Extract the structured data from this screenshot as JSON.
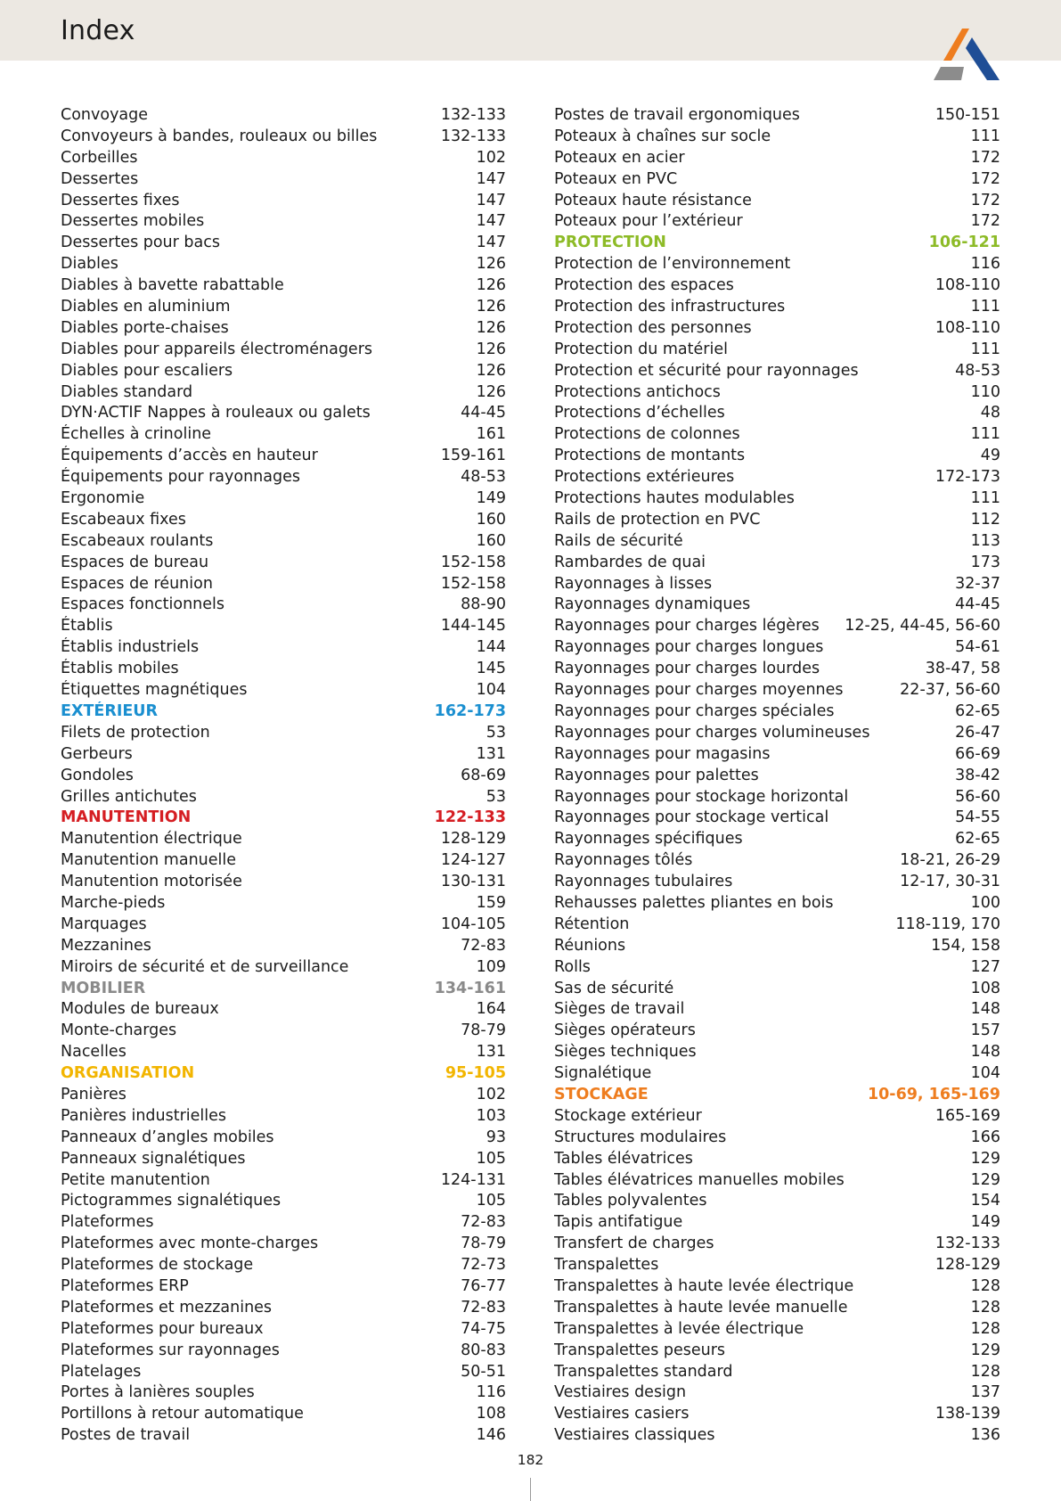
{
  "header": {
    "title": "Index"
  },
  "page_number": "182",
  "colors": {
    "exterieur": "#1a8fd0",
    "manutention": "#d51d22",
    "mobilier": "#8a8a8a",
    "organisation": "#f2b500",
    "protection": "#8dbb27",
    "stockage": "#ee7d1f"
  },
  "left_column": [
    {
      "term": "Convoyage",
      "pages": "132-133"
    },
    {
      "term": "Convoyeurs à bandes, rouleaux ou billes",
      "pages": "132-133"
    },
    {
      "term": "Corbeilles",
      "pages": "102"
    },
    {
      "term": "Dessertes",
      "pages": "147"
    },
    {
      "term": "Dessertes fixes",
      "pages": "147"
    },
    {
      "term": "Dessertes mobiles",
      "pages": "147"
    },
    {
      "term": "Dessertes pour bacs",
      "pages": "147"
    },
    {
      "term": "Diables",
      "pages": "126"
    },
    {
      "term": "Diables à bavette rabattable",
      "pages": "126"
    },
    {
      "term": "Diables en aluminium",
      "pages": "126"
    },
    {
      "term": "Diables porte-chaises",
      "pages": "126"
    },
    {
      "term": "Diables pour appareils électroménagers",
      "pages": "126"
    },
    {
      "term": "Diables pour escaliers",
      "pages": "126"
    },
    {
      "term": "Diables standard",
      "pages": "126"
    },
    {
      "term": "DYN·ACTIF Nappes à rouleaux ou galets",
      "pages": "44-45"
    },
    {
      "term": "Échelles à crinoline",
      "pages": "161"
    },
    {
      "term": "Équipements d’accès en hauteur",
      "pages": "159-161"
    },
    {
      "term": "Équipements pour rayonnages",
      "pages": "48-53"
    },
    {
      "term": "Ergonomie",
      "pages": "149"
    },
    {
      "term": "Escabeaux fixes",
      "pages": "160"
    },
    {
      "term": "Escabeaux roulants",
      "pages": "160"
    },
    {
      "term": "Espaces de bureau",
      "pages": "152-158"
    },
    {
      "term": "Espaces de réunion",
      "pages": "152-158"
    },
    {
      "term": "Espaces fonctionnels",
      "pages": "88-90"
    },
    {
      "term": "Établis",
      "pages": "144-145"
    },
    {
      "term": "Établis industriels",
      "pages": "144"
    },
    {
      "term": "Établis mobiles",
      "pages": "145"
    },
    {
      "term": "Étiquettes magnétiques",
      "pages": "104"
    },
    {
      "term": "EXTÉRIEUR",
      "pages": "162-173",
      "category": "exterieur"
    },
    {
      "term": "Filets de protection",
      "pages": "53"
    },
    {
      "term": "Gerbeurs",
      "pages": "131"
    },
    {
      "term": "Gondoles",
      "pages": "68-69"
    },
    {
      "term": "Grilles antichutes",
      "pages": "53"
    },
    {
      "term": "MANUTENTION",
      "pages": "122-133",
      "category": "manutention"
    },
    {
      "term": "Manutention électrique",
      "pages": "128-129"
    },
    {
      "term": "Manutention manuelle",
      "pages": "124-127"
    },
    {
      "term": "Manutention motorisée",
      "pages": "130-131"
    },
    {
      "term": "Marche-pieds",
      "pages": "159"
    },
    {
      "term": "Marquages",
      "pages": "104-105"
    },
    {
      "term": "Mezzanines",
      "pages": "72-83"
    },
    {
      "term": "Miroirs de sécurité et de surveillance",
      "pages": "109"
    },
    {
      "term": "MOBILIER",
      "pages": "134-161",
      "category": "mobilier"
    },
    {
      "term": "Modules de bureaux",
      "pages": "164"
    },
    {
      "term": "Monte-charges",
      "pages": "78-79"
    },
    {
      "term": "Nacelles",
      "pages": "131"
    },
    {
      "term": "ORGANISATION",
      "pages": "95-105",
      "category": "organisation"
    },
    {
      "term": "Panières",
      "pages": "102"
    },
    {
      "term": "Panières industrielles",
      "pages": "103"
    },
    {
      "term": "Panneaux d’angles mobiles",
      "pages": "93"
    },
    {
      "term": "Panneaux signalétiques",
      "pages": "105"
    },
    {
      "term": "Petite manutention",
      "pages": "124-131"
    },
    {
      "term": "Pictogrammes signalétiques",
      "pages": "105"
    },
    {
      "term": "Plateformes",
      "pages": "72-83"
    },
    {
      "term": "Plateformes avec monte-charges",
      "pages": "78-79"
    },
    {
      "term": "Plateformes de stockage",
      "pages": "72-73"
    },
    {
      "term": "Plateformes ERP",
      "pages": "76-77"
    },
    {
      "term": "Plateformes et mezzanines",
      "pages": "72-83"
    },
    {
      "term": "Plateformes pour bureaux",
      "pages": "74-75"
    },
    {
      "term": "Plateformes sur rayonnages",
      "pages": "80-83"
    },
    {
      "term": "Platelages",
      "pages": "50-51"
    },
    {
      "term": "Portes à lanières souples",
      "pages": "116"
    },
    {
      "term": "Portillons à retour automatique",
      "pages": "108"
    },
    {
      "term": "Postes de travail",
      "pages": "146"
    }
  ],
  "right_column": [
    {
      "term": "Postes de travail ergonomiques",
      "pages": "150-151"
    },
    {
      "term": "Poteaux à chaînes sur socle",
      "pages": "111"
    },
    {
      "term": "Poteaux en acier",
      "pages": "172"
    },
    {
      "term": "Poteaux en PVC",
      "pages": "172"
    },
    {
      "term": "Poteaux haute résistance",
      "pages": "172"
    },
    {
      "term": "Poteaux pour l’extérieur",
      "pages": "172"
    },
    {
      "term": "PROTECTION",
      "pages": "106-121",
      "category": "protection"
    },
    {
      "term": "Protection de l’environnement",
      "pages": "116"
    },
    {
      "term": "Protection des espaces",
      "pages": "108-110"
    },
    {
      "term": "Protection des infrastructures",
      "pages": "111"
    },
    {
      "term": "Protection des personnes",
      "pages": "108-110"
    },
    {
      "term": "Protection du matériel",
      "pages": "111"
    },
    {
      "term": "Protection et sécurité pour rayonnages",
      "pages": "48-53"
    },
    {
      "term": "Protections antichocs",
      "pages": "110"
    },
    {
      "term": "Protections d’échelles",
      "pages": "48"
    },
    {
      "term": "Protections de colonnes",
      "pages": "111"
    },
    {
      "term": "Protections de montants",
      "pages": "49"
    },
    {
      "term": "Protections extérieures",
      "pages": "172-173"
    },
    {
      "term": "Protections hautes modulables",
      "pages": "111"
    },
    {
      "term": "Rails de protection en PVC",
      "pages": "112"
    },
    {
      "term": "Rails de sécurité",
      "pages": "113"
    },
    {
      "term": "Rambardes de quai",
      "pages": "173"
    },
    {
      "term": "Rayonnages à lisses",
      "pages": "32-37"
    },
    {
      "term": "Rayonnages dynamiques",
      "pages": "44-45"
    },
    {
      "term": "Rayonnages pour charges légères",
      "pages": "12-25, 44-45, 56-60"
    },
    {
      "term": "Rayonnages pour charges longues",
      "pages": "54-61"
    },
    {
      "term": "Rayonnages pour charges lourdes",
      "pages": "38-47, 58"
    },
    {
      "term": "Rayonnages pour charges moyennes",
      "pages": "22-37, 56-60"
    },
    {
      "term": "Rayonnages pour charges spéciales",
      "pages": "62-65"
    },
    {
      "term": "Rayonnages pour charges volumineuses",
      "pages": "26-47"
    },
    {
      "term": "Rayonnages pour magasins",
      "pages": "66-69"
    },
    {
      "term": "Rayonnages pour palettes",
      "pages": "38-42"
    },
    {
      "term": "Rayonnages pour stockage horizontal",
      "pages": "56-60"
    },
    {
      "term": "Rayonnages pour stockage vertical",
      "pages": "54-55"
    },
    {
      "term": "Rayonnages spécifiques",
      "pages": "62-65"
    },
    {
      "term": "Rayonnages tôlés",
      "pages": "18-21, 26-29"
    },
    {
      "term": "Rayonnages tubulaires",
      "pages": "12-17, 30-31"
    },
    {
      "term": "Rehausses palettes pliantes en bois",
      "pages": "100"
    },
    {
      "term": "Rétention",
      "pages": "118-119, 170"
    },
    {
      "term": "Réunions",
      "pages": "154, 158"
    },
    {
      "term": "Rolls",
      "pages": "127"
    },
    {
      "term": "Sas de sécurité",
      "pages": "108"
    },
    {
      "term": "Sièges de travail",
      "pages": "148"
    },
    {
      "term": "Sièges opérateurs",
      "pages": "157"
    },
    {
      "term": "Sièges techniques",
      "pages": "148"
    },
    {
      "term": "Signalétique",
      "pages": "104"
    },
    {
      "term": "STOCKAGE",
      "pages": "10-69, 165-169",
      "category": "stockage"
    },
    {
      "term": "Stockage extérieur",
      "pages": "165-169"
    },
    {
      "term": "Structures modulaires",
      "pages": "166"
    },
    {
      "term": "Tables élévatrices",
      "pages": "129"
    },
    {
      "term": "Tables élévatrices manuelles mobiles",
      "pages": "129"
    },
    {
      "term": "Tables polyvalentes",
      "pages": "154"
    },
    {
      "term": "Tapis antifatigue",
      "pages": "149"
    },
    {
      "term": "Transfert de charges",
      "pages": "132-133"
    },
    {
      "term": "Transpalettes",
      "pages": "128-129"
    },
    {
      "term": "Transpalettes à haute levée électrique",
      "pages": "128"
    },
    {
      "term": "Transpalettes à haute levée manuelle",
      "pages": "128"
    },
    {
      "term": "Transpalettes à levée électrique",
      "pages": "128"
    },
    {
      "term": "Transpalettes peseurs",
      "pages": "129"
    },
    {
      "term": "Transpalettes standard",
      "pages": "128"
    },
    {
      "term": "Vestiaires design",
      "pages": "137"
    },
    {
      "term": "Vestiaires casiers",
      "pages": "138-139"
    },
    {
      "term": "Vestiaires classiques",
      "pages": "136"
    }
  ]
}
